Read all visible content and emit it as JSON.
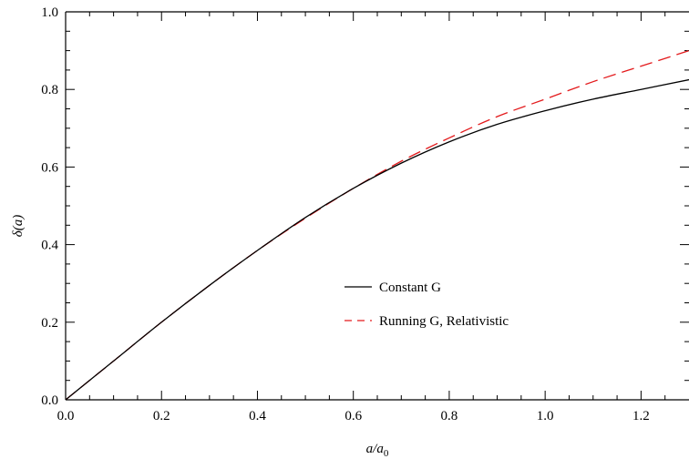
{
  "chart_data": {
    "type": "line",
    "xlabel": "a/a0",
    "ylabel": "δ(a)",
    "xlim": [
      0,
      1.3
    ],
    "ylim": [
      0,
      1.0
    ],
    "x_ticks": [
      "0.0",
      "0.2",
      "0.4",
      "0.6",
      "0.8",
      "1.0",
      "1.2"
    ],
    "y_ticks": [
      "0.0",
      "0.2",
      "0.4",
      "0.6",
      "0.8",
      "1.0"
    ],
    "grid": false,
    "legend_position": "center-right",
    "series": [
      {
        "name": "Constant G",
        "color": "#000000",
        "style": "solid",
        "x": [
          0,
          0.1,
          0.2,
          0.3,
          0.4,
          0.5,
          0.6,
          0.7,
          0.8,
          0.9,
          1.0,
          1.1,
          1.2,
          1.3
        ],
        "y": [
          0,
          0.1,
          0.2,
          0.295,
          0.385,
          0.47,
          0.545,
          0.61,
          0.665,
          0.71,
          0.745,
          0.775,
          0.8,
          0.825
        ]
      },
      {
        "name": "Running G, Relativistic",
        "color": "#e31a1c",
        "style": "dashed",
        "x": [
          0,
          0.1,
          0.2,
          0.3,
          0.4,
          0.5,
          0.6,
          0.7,
          0.8,
          0.9,
          1.0,
          1.1,
          1.2,
          1.3
        ],
        "y": [
          0,
          0.1,
          0.2,
          0.295,
          0.385,
          0.468,
          0.545,
          0.615,
          0.675,
          0.73,
          0.775,
          0.82,
          0.86,
          0.9
        ]
      }
    ]
  }
}
